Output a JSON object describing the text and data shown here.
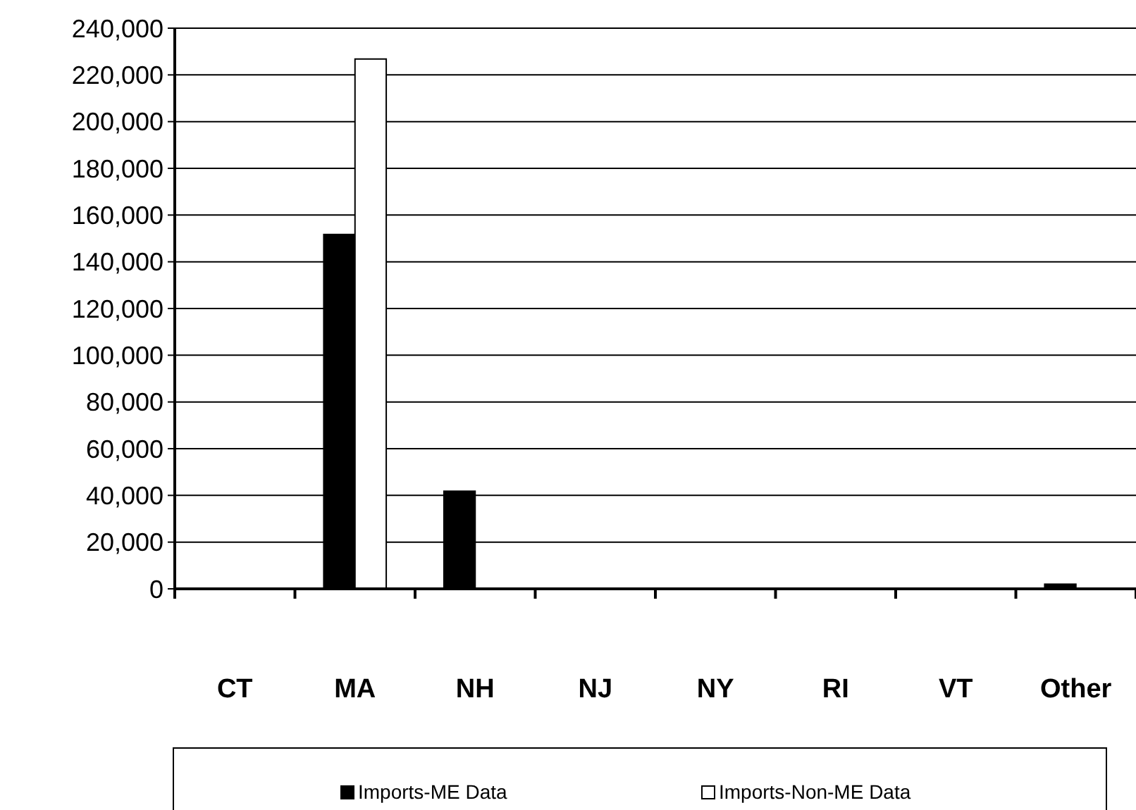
{
  "chart_data": {
    "type": "bar",
    "categories": [
      "CT",
      "MA",
      "NH",
      "NJ",
      "NY",
      "RI",
      "VT",
      "Other"
    ],
    "series": [
      {
        "name": "Imports-ME Data",
        "color": "#000000",
        "values": [
          0,
          151700,
          41800,
          0,
          0,
          0,
          0,
          2000
        ]
      },
      {
        "name": "Imports-Non-ME Data",
        "color": "#ffffff",
        "values": [
          0,
          226800,
          0,
          0,
          0,
          0,
          0,
          0
        ]
      }
    ],
    "ylim": [
      0,
      240000
    ],
    "yticks": [
      {
        "value": 0,
        "label": "0"
      },
      {
        "value": 20000,
        "label": "20,000"
      },
      {
        "value": 40000,
        "label": "40,000"
      },
      {
        "value": 60000,
        "label": "60,000"
      },
      {
        "value": 80000,
        "label": "80,000"
      },
      {
        "value": 100000,
        "label": "100,000"
      },
      {
        "value": 120000,
        "label": "120,000"
      },
      {
        "value": 140000,
        "label": "140,000"
      },
      {
        "value": 160000,
        "label": "160,000"
      },
      {
        "value": 180000,
        "label": "180,000"
      },
      {
        "value": 200000,
        "label": "200,000"
      },
      {
        "value": 220000,
        "label": "220,000"
      },
      {
        "value": 240000,
        "label": "240,000"
      }
    ],
    "grid": "y",
    "legend": "bottom"
  }
}
